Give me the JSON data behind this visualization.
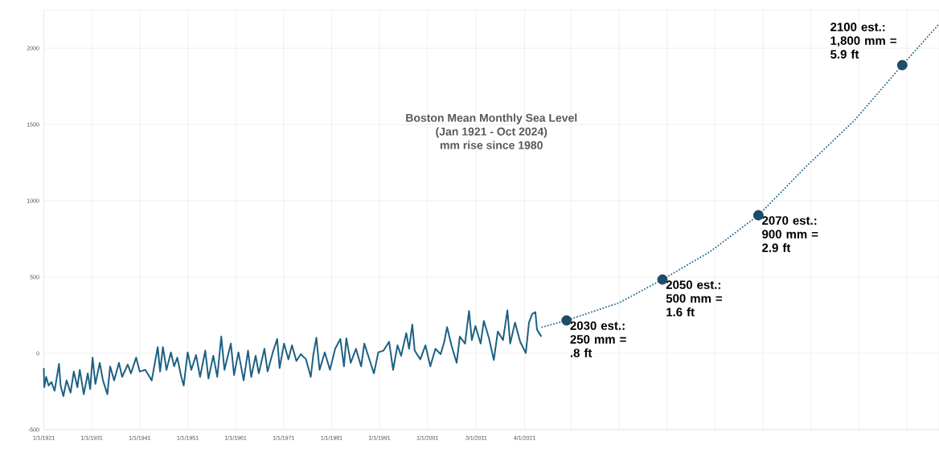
{
  "chart_data": {
    "type": "line",
    "title": "Boston Mean Monthly Sea Level",
    "subtitle": "(Jan 1921 - Oct 2024)",
    "ylabel": "mm rise since 1980",
    "xlim": [
      "1921-01",
      "2107-09"
    ],
    "ylim": [
      -500,
      2250
    ],
    "xticks": [
      {
        "value": "1921-01-01",
        "label": "1/1/1921"
      },
      {
        "value": "1931-01-01",
        "label": "1/1/1931"
      },
      {
        "value": "1941-01-01",
        "label": "1/1/1941"
      },
      {
        "value": "1951-01-01",
        "label": "1/1/1951"
      },
      {
        "value": "1961-01-01",
        "label": "1/1/1961"
      },
      {
        "value": "1971-01-01",
        "label": "1/1/1971"
      },
      {
        "value": "1981-01-01",
        "label": "1/1/1981"
      },
      {
        "value": "1991-01-01",
        "label": "1/1/1991"
      },
      {
        "value": "2001-01-01",
        "label": "1/1/2001"
      },
      {
        "value": "2011-03-01",
        "label": "3/1/2011"
      },
      {
        "value": "2021-04-01",
        "label": "4/1/2021"
      },
      {
        "value": "2031-01-01",
        "label": null
      },
      {
        "value": "2041-01-01",
        "label": null
      },
      {
        "value": "2051-01-01",
        "label": null
      },
      {
        "value": "2061-01-01",
        "label": null
      },
      {
        "value": "2071-01-01",
        "label": null
      },
      {
        "value": "2081-01-01",
        "label": null
      },
      {
        "value": "2091-01-01",
        "label": null
      },
      {
        "value": "2101-01-01",
        "label": null
      }
    ],
    "yticks": [
      -500,
      0,
      500,
      1000,
      1500,
      2000
    ],
    "grid": true,
    "series": [
      {
        "color": "#1d6184",
        "line_style": "solid",
        "marker": "none",
        "x": [
          "1921-01",
          "1921-02",
          "1921-07",
          "1922-01",
          "1922-08",
          "1923-04",
          "1924-03",
          "1924-07",
          "1925-02",
          "1925-10",
          "1926-08",
          "1927-04",
          "1928-01",
          "1928-07",
          "1929-05",
          "1930-03",
          "1930-09",
          "1931-03",
          "1931-10",
          "1932-09",
          "1933-05",
          "1934-04",
          "1934-11",
          "1935-09",
          "1936-09",
          "1937-05",
          "1938-07",
          "1939-03",
          "1940-04",
          "1941-01",
          "1942-03",
          "1943-07",
          "1944-10",
          "1945-04",
          "1945-11",
          "1946-08",
          "1947-07",
          "1948-03",
          "1948-11",
          "1949-09",
          "1950-03",
          "1951-01",
          "1951-10",
          "1952-10",
          "1953-08",
          "1954-09",
          "1955-05",
          "1956-05",
          "1957-03",
          "1958-01",
          "1958-09",
          "1960-01",
          "1960-09",
          "1961-08",
          "1962-09",
          "1963-08",
          "1964-04",
          "1965-03",
          "1965-11",
          "1967-01",
          "1967-09",
          "1968-10",
          "1969-09",
          "1970-03",
          "1971-02",
          "1972-01",
          "1972-10",
          "1973-09",
          "1974-08",
          "1975-09",
          "1976-09",
          "1977-03",
          "1977-11",
          "1978-07",
          "1979-08",
          "1980-09",
          "1981-10",
          "1982-11",
          "1983-08",
          "1984-02",
          "1985-01",
          "1986-02",
          "1987-03",
          "1987-11",
          "1989-01",
          "1989-11",
          "1990-10",
          "1991-11",
          "1993-01",
          "1993-11",
          "1994-10",
          "1995-07",
          "1996-08",
          "1997-03",
          "1997-11",
          "1998-05",
          "1999-07",
          "2000-08",
          "2001-08",
          "2002-09",
          "2003-10",
          "2004-07",
          "2005-02",
          "2006-01",
          "2007-02",
          "2007-10",
          "2008-11",
          "2009-09",
          "2010-04",
          "2011-01",
          "2012-02",
          "2012-10",
          "2013-11",
          "2014-11",
          "2015-09",
          "2016-10",
          "2017-09",
          "2018-04",
          "2019-04",
          "2020-05",
          "2021-07",
          "2022-03",
          "2022-11",
          "2023-07",
          "2023-11",
          "2024-10"
        ],
        "values": [
          -96,
          -222,
          -154,
          -211,
          -188,
          -245,
          -69,
          -211,
          -280,
          -177,
          -257,
          -119,
          -222,
          -108,
          -268,
          -131,
          -234,
          -28,
          -200,
          -62,
          -177,
          -268,
          -85,
          -177,
          -62,
          -154,
          -73,
          -131,
          -28,
          -119,
          -108,
          -177,
          41,
          -119,
          41,
          -108,
          7,
          -85,
          -28,
          -154,
          -211,
          7,
          -108,
          -11,
          -154,
          18,
          -165,
          -16,
          -154,
          110,
          -108,
          64,
          -142,
          7,
          -177,
          18,
          -154,
          -16,
          -131,
          30,
          -119,
          7,
          94,
          -96,
          64,
          -39,
          53,
          -50,
          -5,
          -39,
          -154,
          -16,
          103,
          -108,
          7,
          -108,
          30,
          94,
          -85,
          99,
          -62,
          30,
          -85,
          64,
          -50,
          -131,
          7,
          18,
          76,
          -108,
          53,
          -16,
          133,
          30,
          190,
          18,
          -39,
          53,
          -85,
          30,
          -5,
          76,
          172,
          53,
          -62,
          110,
          64,
          278,
          87,
          179,
          64,
          213,
          99,
          -44,
          144,
          87,
          282,
          64,
          202,
          76,
          2,
          202,
          259,
          271,
          156,
          110
        ]
      },
      {
        "type": "line",
        "color": "#2a6f97",
        "line_style": "dotted",
        "marker": "none",
        "x": [
          "2024-10",
          "2030-01",
          "2041-01",
          "2050-01",
          "2060-01",
          "2070-01",
          "2080-01",
          "2090-01",
          "2100-01",
          "2107-09"
        ],
        "values": [
          170,
          216,
          332,
          484,
          668,
          905,
          1226,
          1526,
          1889,
          2158
        ]
      },
      {
        "type": "scatter",
        "color": "#17506e",
        "marker": "circle",
        "x": [
          "2030-01",
          "2050-01",
          "2070-01",
          "2100-01"
        ],
        "values": [
          216,
          484,
          905,
          1889
        ]
      }
    ],
    "annotations": [
      {
        "text": "2030 est.: 250 mm = .8 ft",
        "x": "2030-01",
        "y": 216
      },
      {
        "text": "2050 est.: 500 mm = 1.6 ft",
        "x": "2050-01",
        "y": 484
      },
      {
        "text": "2070 est.: 900 mm = 2.9 ft",
        "x": "2070-01",
        "y": 905
      },
      {
        "text": "2100 est.: 1,800 mm = 5.9 ft",
        "x": "2100-01",
        "y": 1889
      }
    ]
  }
}
